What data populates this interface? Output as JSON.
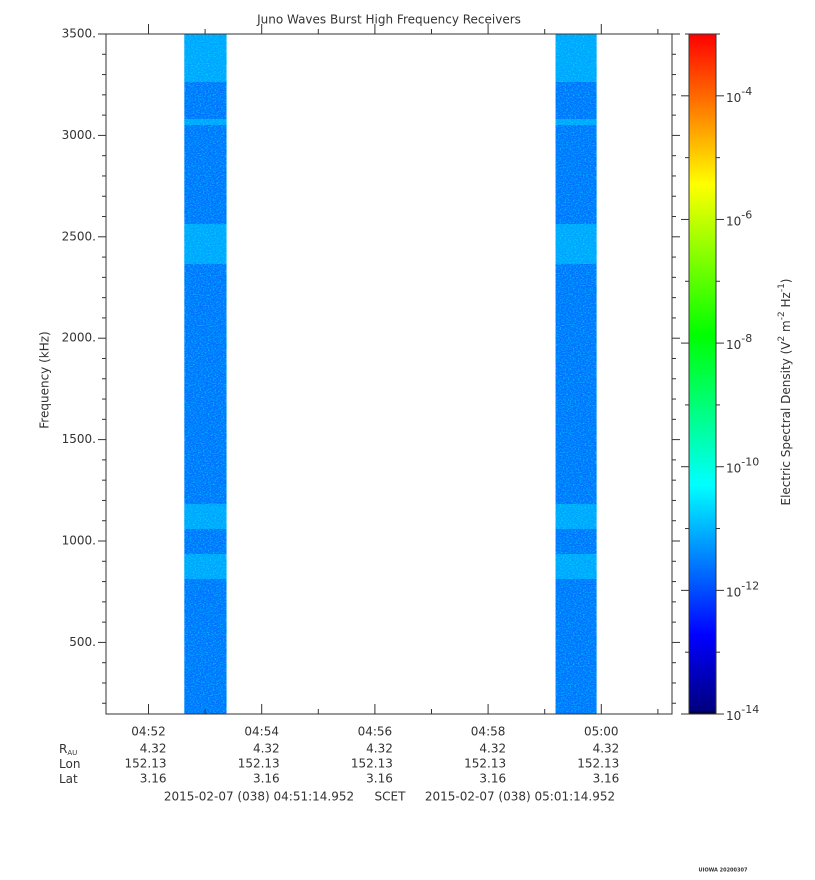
{
  "chart_data": {
    "type": "spectrogram",
    "title": "Juno Waves Burst High Frequency Receivers",
    "ylabel": "Frequency (kHz)",
    "xlim": [
      17474.952,
      18074.952
    ],
    "xticks": [
      {
        "value": 17520,
        "label": "04:52"
      },
      {
        "value": 17640,
        "label": "04:54"
      },
      {
        "value": 17760,
        "label": "04:56"
      },
      {
        "value": 17880,
        "label": "04:58"
      },
      {
        "value": 18000,
        "label": "05:00"
      }
    ],
    "xminorticks": [
      17580,
      17700,
      17820,
      17940,
      18060
    ],
    "ylim": [
      147,
      3500
    ],
    "yticks": [
      {
        "value": 500,
        "label": "500."
      },
      {
        "value": 1000,
        "label": "1000."
      },
      {
        "value": 1500,
        "label": "1500."
      },
      {
        "value": 2000,
        "label": "2000."
      },
      {
        "value": 2500,
        "label": "2500."
      },
      {
        "value": 3000,
        "label": "3000."
      },
      {
        "value": 3500,
        "label": "3500."
      }
    ],
    "yminorticks": [
      200,
      300,
      400,
      600,
      700,
      800,
      900,
      1100,
      1200,
      1300,
      1400,
      1600,
      1700,
      1800,
      1900,
      2100,
      2200,
      2300,
      2400,
      2600,
      2700,
      2800,
      2900,
      3100,
      3200,
      3300,
      3400
    ],
    "zlog": true,
    "zlim": [
      1e-14,
      0.001
    ],
    "zticks": [
      {
        "value": 1e-14,
        "label": "10",
        "exponent": "-14"
      },
      {
        "value": 1e-12,
        "label": "10",
        "exponent": "-12"
      },
      {
        "value": 1e-10,
        "label": "10",
        "exponent": "-10"
      },
      {
        "value": 1e-08,
        "label": "10",
        "exponent": "-8"
      },
      {
        "value": 1e-06,
        "label": "10",
        "exponent": "-6"
      },
      {
        "value": 0.0001,
        "label": "10",
        "exponent": "-4"
      }
    ],
    "zminorticks": [
      1e-13,
      1e-11,
      1e-09,
      1e-07,
      1e-05,
      0.001
    ],
    "zlabel_parts": [
      "Electric Spectral Density (V",
      "2",
      " m",
      "-2",
      " Hz",
      "-1",
      ")"
    ],
    "colormap": [
      "#000000",
      "#00007f",
      "#0000ff",
      "#007fff",
      "#00ffff",
      "#00ff7f",
      "#00ff00",
      "#7fff00",
      "#ffff00",
      "#ff7f00",
      "#ff0000"
    ],
    "bursts": [
      {
        "start": 17558,
        "end": 17602.7,
        "density": 2e-12
      },
      {
        "start": 17951.5,
        "end": 17995,
        "density": 2e-12
      }
    ],
    "ephemeris": [
      {
        "label": "R",
        "sub": "AU",
        "values": [
          4.32,
          4.32,
          4.32,
          4.32,
          4.32
        ]
      },
      {
        "label": "Lon",
        "values": [
          152.13,
          152.13,
          152.13,
          152.13,
          152.13
        ]
      },
      {
        "label": "Lat",
        "values": [
          3.16,
          3.16,
          3.16,
          3.16,
          3.16
        ]
      }
    ],
    "start_label": "2015-02-07 (038) 04:51:14.952",
    "scet_label": "SCET",
    "end_label": "2015-02-07 (038) 05:01:14.952",
    "footer": "UIOWA 20200307"
  }
}
